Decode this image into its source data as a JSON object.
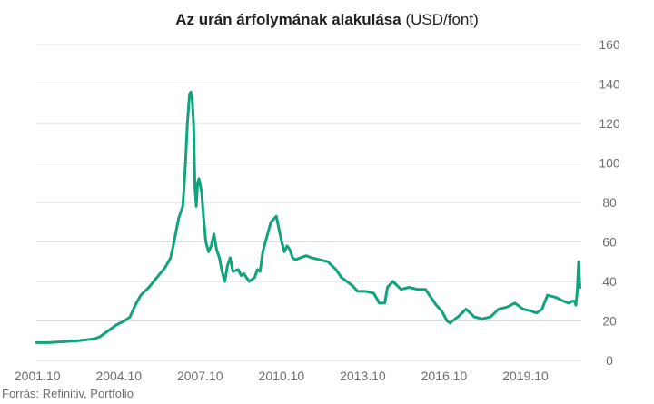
{
  "chart_data": {
    "type": "line",
    "title_bold": "Az urán árfolymának alakulása",
    "title_rest": " (USD/font)",
    "source": "Forrás: Refinitiv, Portfolio",
    "line_color": "#12a37d",
    "grid_color": "#d9d9d9",
    "xlim": [
      2001.75,
      2021.85
    ],
    "ylim": [
      0,
      160
    ],
    "grid": true,
    "y_axis_position": "right",
    "x_ticks": [
      {
        "label": "2001.10",
        "value": 2001.79
      },
      {
        "label": "2004.10",
        "value": 2004.79
      },
      {
        "label": "2007.10",
        "value": 2007.79
      },
      {
        "label": "2010.10",
        "value": 2010.79
      },
      {
        "label": "2013.10",
        "value": 2013.79
      },
      {
        "label": "2016.10",
        "value": 2016.79
      },
      {
        "label": "2019.10",
        "value": 2019.79
      }
    ],
    "y_ticks": [
      0,
      20,
      40,
      60,
      80,
      100,
      120,
      140,
      160
    ],
    "series": [
      {
        "x": [
          2001.75,
          2002.2,
          2002.8,
          2003.3,
          2003.6,
          2003.9,
          2004.1,
          2004.4,
          2004.7,
          2005.0,
          2005.1,
          2005.2,
          2005.4,
          2005.6,
          2005.9,
          2006.2,
          2006.5,
          2006.7,
          2006.8,
          2007.0,
          2007.15,
          2007.2,
          2007.25,
          2007.32,
          2007.4,
          2007.45,
          2007.5,
          2007.55,
          2007.6,
          2007.65,
          2007.7,
          2007.75,
          2007.85,
          2007.9,
          2008.0,
          2008.1,
          2008.2,
          2008.3,
          2008.4,
          2008.5,
          2008.6,
          2008.7,
          2008.8,
          2008.9,
          2009.0,
          2009.2,
          2009.3,
          2009.4,
          2009.5,
          2009.6,
          2009.7,
          2009.8,
          2009.9,
          2010.0,
          2010.1,
          2010.2,
          2010.4,
          2010.6,
          2010.8,
          2010.9,
          2011.0,
          2011.1,
          2011.15,
          2011.2,
          2011.3,
          2011.5,
          2011.7,
          2011.9,
          2012.2,
          2012.5,
          2012.8,
          2013.0,
          2013.2,
          2013.4,
          2013.6,
          2013.9,
          2014.2,
          2014.4,
          2014.6,
          2014.7,
          2014.9,
          2015.2,
          2015.5,
          2015.8,
          2016.1,
          2016.3,
          2016.5,
          2016.7,
          2016.9,
          2017.0,
          2017.3,
          2017.6,
          2017.9,
          2018.2,
          2018.5,
          2018.8,
          2019.1,
          2019.4,
          2019.7,
          2020.0,
          2020.2,
          2020.4,
          2020.6,
          2020.9,
          2021.2,
          2021.4,
          2021.5,
          2021.6,
          2021.65,
          2021.7,
          2021.75,
          2021.8
        ],
        "y": [
          9,
          9,
          9.5,
          10,
          10.5,
          11,
          12,
          15,
          18,
          20,
          21,
          22,
          28,
          33,
          37,
          42,
          47,
          52,
          58,
          72,
          78,
          88,
          100,
          120,
          135,
          136,
          132,
          120,
          88,
          78,
          90,
          92,
          85,
          75,
          60,
          55,
          58,
          64,
          56,
          52,
          45,
          40,
          48,
          52,
          45,
          46,
          43,
          44,
          42,
          40,
          41,
          42,
          46,
          45,
          55,
          60,
          70,
          73,
          60,
          55,
          58,
          56,
          54,
          52,
          51,
          52,
          53,
          52,
          51,
          50,
          46,
          42,
          40,
          38,
          35,
          35,
          34,
          29,
          29,
          37,
          40,
          36,
          37,
          36,
          36,
          32,
          28,
          25,
          20,
          19,
          22,
          26,
          22,
          21,
          22,
          26,
          27,
          29,
          26,
          25,
          24,
          26,
          33,
          32,
          30,
          29,
          30,
          30,
          28,
          35,
          50,
          37
        ]
      }
    ]
  }
}
